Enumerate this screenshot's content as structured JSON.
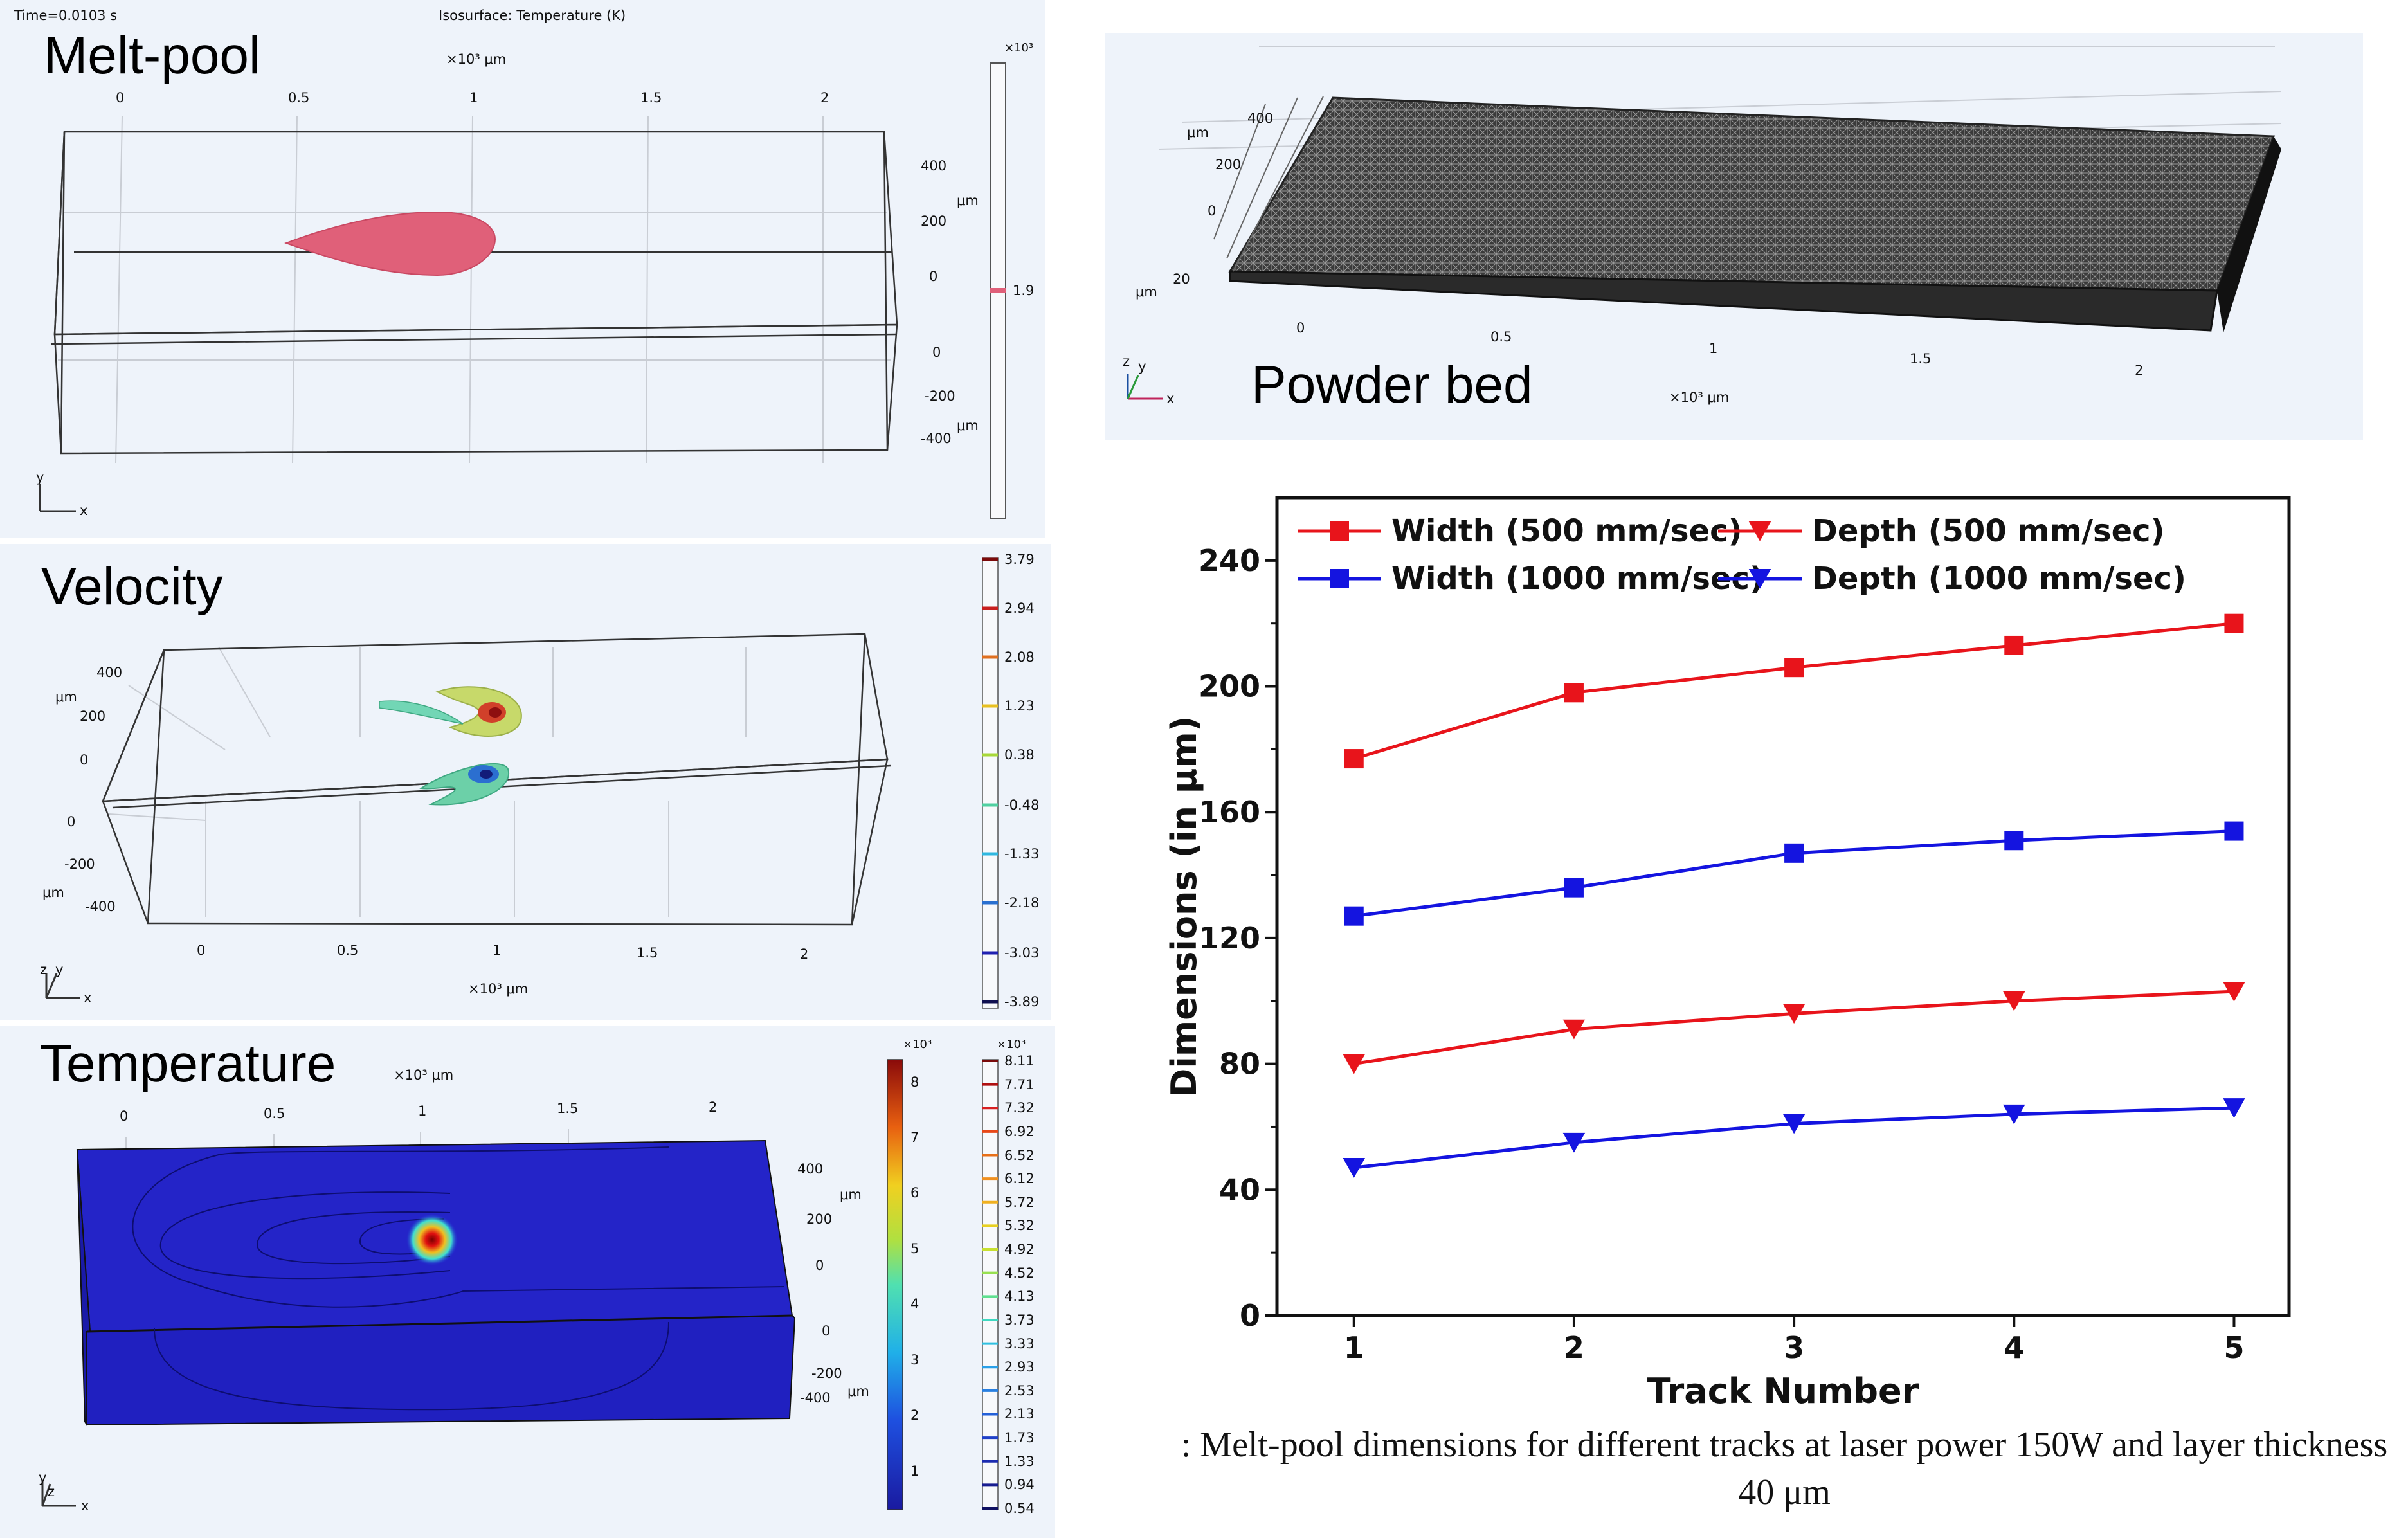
{
  "meltpool": {
    "title": "Melt-pool",
    "time": "Time=0.0103 s",
    "plot_label": "Isosurface: Temperature (K)",
    "x_unit": "×10³ μm",
    "x_ticks": [
      "0",
      "0.5",
      "1",
      "1.5",
      "2"
    ],
    "z_ticks_upper": [
      "400",
      "200",
      "0"
    ],
    "z_ticks_lower": [
      "0",
      "-200",
      "-400"
    ],
    "unit": "μm",
    "colorbar_exp": "×10³",
    "colorbar_value": "1.9"
  },
  "velocity": {
    "title": "Velocity",
    "z_ticks_upper": [
      "400",
      "200",
      "0"
    ],
    "z_ticks_lower": [
      "0",
      "-200",
      "-400"
    ],
    "unit": "μm",
    "x_ticks": [
      "0",
      "0.5",
      "1",
      "1.5",
      "2"
    ],
    "x_unit": "×10³ μm",
    "colorbar_labels": [
      "3.79",
      "2.94",
      "2.08",
      "1.23",
      "0.38",
      "-0.48",
      "-1.33",
      "-2.18",
      "-3.03",
      "-3.89"
    ]
  },
  "temperature": {
    "title": "Temperature",
    "x_unit": "×10³ μm",
    "x_ticks": [
      "0",
      "0.5",
      "1",
      "1.5",
      "2"
    ],
    "z_ticks_upper": [
      "400",
      "200",
      "0"
    ],
    "z_ticks_lower": [
      "0",
      "-200",
      "-400"
    ],
    "unit": "μm",
    "colorbar_exp": "×10³",
    "colorbar1_ticks": [
      "8",
      "7",
      "6",
      "5",
      "4",
      "3",
      "2",
      "1"
    ],
    "colorbar2_ticks": [
      "8.11",
      "7.71",
      "7.32",
      "6.92",
      "6.52",
      "6.12",
      "5.72",
      "5.32",
      "4.92",
      "4.52",
      "4.13",
      "3.73",
      "3.33",
      "2.93",
      "2.53",
      "2.13",
      "1.73",
      "1.33",
      "0.94",
      "0.54"
    ]
  },
  "powderbed": {
    "title": "Powder bed",
    "y_ticks": [
      "400",
      "200",
      "0"
    ],
    "z_tick": "20",
    "unit": "μm",
    "x_ticks": [
      "0",
      "0.5",
      "1",
      "1.5",
      "2"
    ],
    "x_unit": "×10³ μm"
  },
  "axis_triad": {
    "x": "x",
    "y": "y",
    "z": "z"
  },
  "chart_data": {
    "type": "line",
    "xlabel": "Track Number",
    "ylabel": "Dimensions (in μm)",
    "x": [
      1,
      2,
      3,
      4,
      5
    ],
    "x_ticks": [
      "1",
      "2",
      "3",
      "4",
      "5"
    ],
    "y_ticks": [
      "0",
      "40",
      "80",
      "120",
      "160",
      "200",
      "240"
    ],
    "ylim": [
      0,
      260
    ],
    "xlim": [
      0.65,
      5.25
    ],
    "legend_position": "top",
    "series": [
      {
        "name": "Width (500 mm/sec)",
        "marker": "square",
        "color": "#e8141b",
        "values": [
          177,
          198,
          206,
          213,
          220
        ]
      },
      {
        "name": "Width (1000 mm/sec)",
        "marker": "square",
        "color": "#1414e0",
        "values": [
          127,
          136,
          147,
          151,
          154
        ]
      },
      {
        "name": "Depth (500 mm/sec)",
        "marker": "triangle",
        "color": "#e8141b",
        "values": [
          80,
          91,
          96,
          100,
          103
        ]
      },
      {
        "name": "Depth (1000 mm/sec)",
        "marker": "triangle",
        "color": "#1414e0",
        "values": [
          47,
          55,
          61,
          64,
          66
        ]
      }
    ]
  },
  "caption": ": Melt-pool dimensions for different tracks at laser power 150W and layer thickness 40 μm"
}
